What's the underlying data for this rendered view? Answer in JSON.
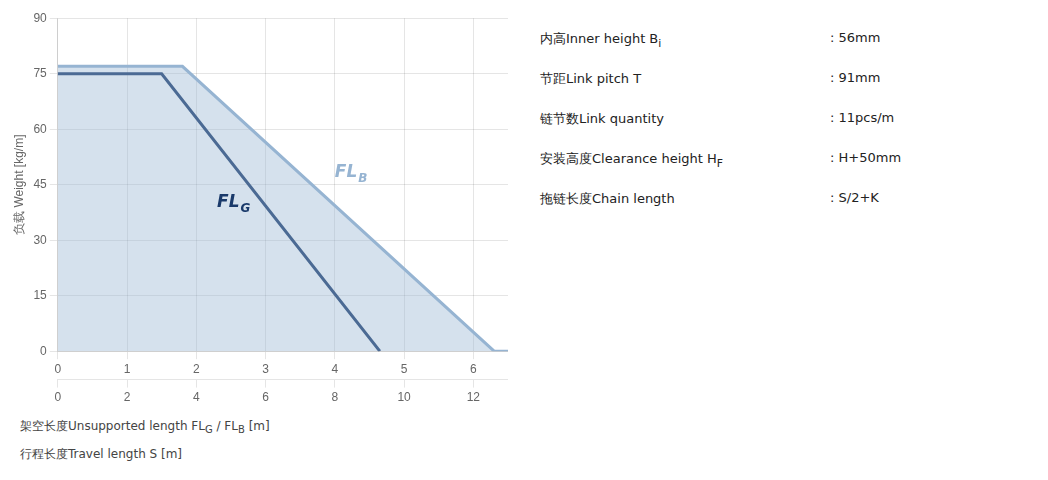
{
  "chart_data": {
    "type": "line",
    "ylabel": "负载 Weight [kg/m]",
    "xlabel_parts": [
      {
        "text": "架空长度Unsupported length FL",
        "subscript": "G"
      },
      {
        "text": " / FL",
        "subscript": "B"
      },
      {
        "text": " [m]"
      }
    ],
    "x2label": "行程长度Travel length S [m]",
    "xlim": [
      0,
      6.5
    ],
    "xticks": [
      0,
      1.0,
      2.0,
      3.0,
      4.0,
      5.0,
      6.0
    ],
    "x2lim": [
      0,
      13
    ],
    "x2ticks": [
      0,
      2,
      4,
      6,
      8,
      10,
      12
    ],
    "ylim": [
      0,
      90
    ],
    "yticks": [
      0,
      15,
      30,
      45,
      60,
      75,
      90
    ],
    "grid": true,
    "series": [
      {
        "type": "area",
        "color": "#96b4d2",
        "x": [
          0,
          1.8,
          6.3,
          6.5
        ],
        "values": [
          77,
          77,
          0,
          0
        ]
      },
      {
        "type": "line",
        "color": "#1a3a6b",
        "x": [
          0,
          1.5,
          4.65,
          4.65
        ],
        "values": [
          75,
          75,
          0,
          0
        ]
      }
    ],
    "annotations": [
      {
        "text": "FL",
        "subscript": "G",
        "x": 2.3,
        "y": 39,
        "color": "#1a3a6b"
      },
      {
        "text": "FL",
        "subscript": "B",
        "x": 4.0,
        "y": 47,
        "color": "#96b4d2"
      }
    ],
    "specs": [
      {
        "text": "内高Inner height B",
        "subscript": "i",
        "value": ":  56mm"
      },
      {
        "text": "节距Link pitch T",
        "value": ":  91mm"
      },
      {
        "text": "链节数Link quantity",
        "value": ":  11pcs/m"
      },
      {
        "text": "安装高度Clearance height H",
        "subscript": "F",
        "value": ":  H+50mm"
      },
      {
        "text": "拖链长度Chain length",
        "value": ":  S/2+K"
      }
    ]
  }
}
